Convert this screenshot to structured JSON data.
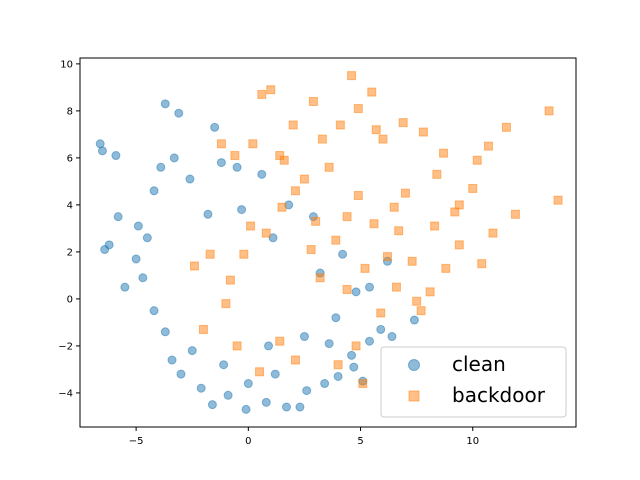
{
  "chart_data": {
    "type": "scatter",
    "title": "",
    "xlabel": "",
    "ylabel": "",
    "xlim": [
      -7.5,
      14.6
    ],
    "ylim": [
      -5.45,
      10.25
    ],
    "xticks": [
      -5,
      0,
      5,
      10
    ],
    "yticks": [
      -4,
      -2,
      0,
      2,
      4,
      6,
      8,
      10
    ],
    "legend_position": "bottom-right",
    "grid": false,
    "series": [
      {
        "name": "clean",
        "marker": "circle",
        "color": "#1f77b4",
        "alpha": 0.5,
        "points": [
          [
            -6.6,
            6.6
          ],
          [
            -6.5,
            6.3
          ],
          [
            -5.9,
            6.1
          ],
          [
            -3.7,
            8.3
          ],
          [
            -3.1,
            7.9
          ],
          [
            -1.5,
            7.3
          ],
          [
            -6.4,
            2.1
          ],
          [
            -5.5,
            0.5
          ],
          [
            -6.2,
            2.3
          ],
          [
            -5.8,
            3.5
          ],
          [
            -4.9,
            3.1
          ],
          [
            -4.2,
            4.6
          ],
          [
            -3.9,
            5.6
          ],
          [
            -3.3,
            6.0
          ],
          [
            -2.6,
            5.1
          ],
          [
            -1.2,
            5.8
          ],
          [
            -0.5,
            5.6
          ],
          [
            0.6,
            5.3
          ],
          [
            -3.4,
            -2.6
          ],
          [
            -3.0,
            -3.2
          ],
          [
            -2.1,
            -3.8
          ],
          [
            -1.6,
            -4.5
          ],
          [
            -0.9,
            -4.1
          ],
          [
            -0.1,
            -4.7
          ],
          [
            0.8,
            -4.4
          ],
          [
            1.7,
            -4.6
          ],
          [
            2.3,
            -4.6
          ],
          [
            2.6,
            -3.9
          ],
          [
            3.4,
            -3.6
          ],
          [
            4.0,
            -3.3
          ],
          [
            4.6,
            -2.4
          ],
          [
            5.4,
            -1.8
          ],
          [
            5.9,
            -1.3
          ],
          [
            6.4,
            -1.6
          ],
          [
            7.4,
            -0.9
          ],
          [
            5.1,
            -3.5
          ],
          [
            6.2,
            1.6
          ],
          [
            5.4,
            0.5
          ],
          [
            4.2,
            1.9
          ],
          [
            3.9,
            -0.8
          ],
          [
            3.2,
            1.1
          ],
          [
            2.5,
            -1.6
          ],
          [
            2.9,
            3.5
          ],
          [
            1.8,
            4.0
          ],
          [
            1.1,
            2.6
          ],
          [
            -0.3,
            3.8
          ],
          [
            -1.8,
            3.6
          ],
          [
            -4.7,
            0.9
          ],
          [
            -4.2,
            -0.5
          ],
          [
            -3.7,
            -1.4
          ],
          [
            -4.5,
            2.6
          ],
          [
            -5.0,
            1.7
          ],
          [
            0.0,
            -3.6
          ],
          [
            1.2,
            -3.2
          ],
          [
            4.7,
            -2.9
          ],
          [
            3.6,
            -1.9
          ],
          [
            4.8,
            0.3
          ],
          [
            -2.5,
            -2.2
          ],
          [
            -1.1,
            -2.8
          ],
          [
            0.9,
            -2.0
          ]
        ]
      },
      {
        "name": "backdoor",
        "marker": "square",
        "color": "#ff7f0e",
        "alpha": 0.5,
        "points": [
          [
            0.6,
            8.7
          ],
          [
            1.0,
            8.9
          ],
          [
            2.9,
            8.4
          ],
          [
            4.6,
            9.5
          ],
          [
            4.9,
            8.1
          ],
          [
            5.5,
            8.8
          ],
          [
            13.4,
            8.0
          ],
          [
            13.8,
            4.2
          ],
          [
            11.5,
            7.3
          ],
          [
            10.7,
            6.5
          ],
          [
            10.2,
            5.9
          ],
          [
            10.0,
            4.7
          ],
          [
            8.7,
            6.2
          ],
          [
            8.4,
            5.3
          ],
          [
            7.8,
            7.1
          ],
          [
            6.9,
            7.5
          ],
          [
            6.0,
            6.8
          ],
          [
            5.7,
            7.2
          ],
          [
            4.1,
            7.4
          ],
          [
            3.3,
            6.8
          ],
          [
            2.0,
            7.4
          ],
          [
            1.4,
            6.1
          ],
          [
            0.2,
            6.6
          ],
          [
            -1.2,
            6.6
          ],
          [
            -0.6,
            6.1
          ],
          [
            9.4,
            4.0
          ],
          [
            11.9,
            3.6
          ],
          [
            10.9,
            2.8
          ],
          [
            10.4,
            1.5
          ],
          [
            9.4,
            2.3
          ],
          [
            8.8,
            1.3
          ],
          [
            8.1,
            0.3
          ],
          [
            7.7,
            -0.5
          ],
          [
            6.6,
            0.5
          ],
          [
            6.2,
            1.8
          ],
          [
            5.6,
            3.2
          ],
          [
            4.9,
            4.4
          ],
          [
            4.4,
            3.5
          ],
          [
            3.9,
            2.5
          ],
          [
            3.0,
            3.3
          ],
          [
            2.1,
            4.6
          ],
          [
            1.5,
            3.9
          ],
          [
            0.8,
            2.8
          ],
          [
            -0.2,
            1.9
          ],
          [
            -0.8,
            0.8
          ],
          [
            -1.7,
            1.9
          ],
          [
            -2.4,
            1.4
          ],
          [
            -0.5,
            -2.0
          ],
          [
            0.5,
            -3.1
          ],
          [
            1.4,
            -1.8
          ],
          [
            2.1,
            -2.6
          ],
          [
            4.0,
            -2.8
          ],
          [
            5.1,
            -3.6
          ],
          [
            4.8,
            -2.0
          ],
          [
            6.7,
            2.9
          ],
          [
            7.3,
            1.6
          ],
          [
            8.3,
            3.1
          ],
          [
            9.2,
            3.7
          ],
          [
            7.0,
            4.5
          ],
          [
            6.5,
            3.9
          ],
          [
            3.6,
            5.6
          ],
          [
            2.5,
            5.1
          ],
          [
            1.6,
            5.9
          ],
          [
            0.1,
            3.1
          ],
          [
            3.2,
            0.9
          ],
          [
            2.8,
            2.1
          ],
          [
            5.2,
            1.3
          ],
          [
            4.4,
            0.4
          ],
          [
            5.9,
            -0.6
          ],
          [
            7.5,
            -0.1
          ],
          [
            -2.0,
            -1.3
          ],
          [
            -1.0,
            -0.2
          ]
        ]
      }
    ]
  },
  "legend": {
    "clean": "clean",
    "backdoor": "backdoor"
  },
  "colors": {
    "clean": "#1f77b4",
    "backdoor": "#ff7f0e"
  }
}
